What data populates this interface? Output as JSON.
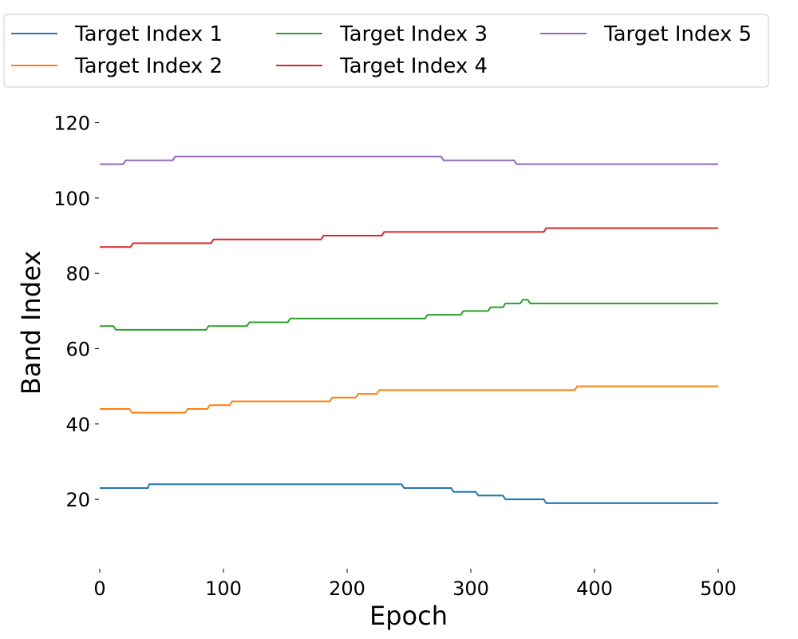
{
  "chart_data": {
    "type": "line",
    "xlabel": "Epoch",
    "ylabel": "Band Index",
    "xlim": [
      0,
      500
    ],
    "ylim": [
      2,
      125
    ],
    "xticks": [
      0,
      100,
      200,
      300,
      400,
      500
    ],
    "yticks": [
      20,
      40,
      60,
      80,
      100,
      120
    ],
    "grid": false,
    "legend_position": "top",
    "series": [
      {
        "name": "Target Index 1",
        "color": "#1f77b4",
        "points": [
          [
            0,
            23
          ],
          [
            39,
            23
          ],
          [
            40,
            24
          ],
          [
            244,
            24
          ],
          [
            246,
            23
          ],
          [
            284,
            23
          ],
          [
            286,
            22
          ],
          [
            304,
            22
          ],
          [
            306,
            21
          ],
          [
            326,
            21
          ],
          [
            328,
            20
          ],
          [
            359,
            20
          ],
          [
            361,
            19
          ],
          [
            500,
            19
          ]
        ]
      },
      {
        "name": "Target Index 2",
        "color": "#ff7f0e",
        "points": [
          [
            0,
            44
          ],
          [
            24,
            44
          ],
          [
            26,
            43
          ],
          [
            69,
            43
          ],
          [
            71,
            44
          ],
          [
            87,
            44
          ],
          [
            89,
            45
          ],
          [
            105,
            45
          ],
          [
            107,
            46
          ],
          [
            186,
            46
          ],
          [
            188,
            47
          ],
          [
            207,
            47
          ],
          [
            209,
            48
          ],
          [
            224,
            48
          ],
          [
            226,
            49
          ],
          [
            384,
            49
          ],
          [
            386,
            50
          ],
          [
            500,
            50
          ]
        ]
      },
      {
        "name": "Target Index 3",
        "color": "#2ca02c",
        "points": [
          [
            0,
            66
          ],
          [
            11,
            66
          ],
          [
            13,
            65
          ],
          [
            86,
            65
          ],
          [
            88,
            66
          ],
          [
            119,
            66
          ],
          [
            121,
            67
          ],
          [
            152,
            67
          ],
          [
            154,
            68
          ],
          [
            263,
            68
          ],
          [
            265,
            69
          ],
          [
            292,
            69
          ],
          [
            294,
            70
          ],
          [
            314,
            70
          ],
          [
            316,
            71
          ],
          [
            326,
            71
          ],
          [
            328,
            72
          ],
          [
            340,
            72
          ],
          [
            342,
            73
          ],
          [
            346,
            73
          ],
          [
            348,
            72
          ],
          [
            500,
            72
          ]
        ]
      },
      {
        "name": "Target Index 4",
        "color": "#d62728",
        "points": [
          [
            0,
            87
          ],
          [
            25,
            87
          ],
          [
            27,
            88
          ],
          [
            90,
            88
          ],
          [
            92,
            89
          ],
          [
            179,
            89
          ],
          [
            181,
            90
          ],
          [
            228,
            90
          ],
          [
            230,
            91
          ],
          [
            359,
            91
          ],
          [
            361,
            92
          ],
          [
            500,
            92
          ]
        ]
      },
      {
        "name": "Target Index 5",
        "color": "#9467bd",
        "points": [
          [
            0,
            109
          ],
          [
            19,
            109
          ],
          [
            21,
            110
          ],
          [
            59,
            110
          ],
          [
            61,
            111
          ],
          [
            276,
            111
          ],
          [
            278,
            110
          ],
          [
            335,
            110
          ],
          [
            337,
            109
          ],
          [
            500,
            109
          ]
        ]
      }
    ]
  }
}
